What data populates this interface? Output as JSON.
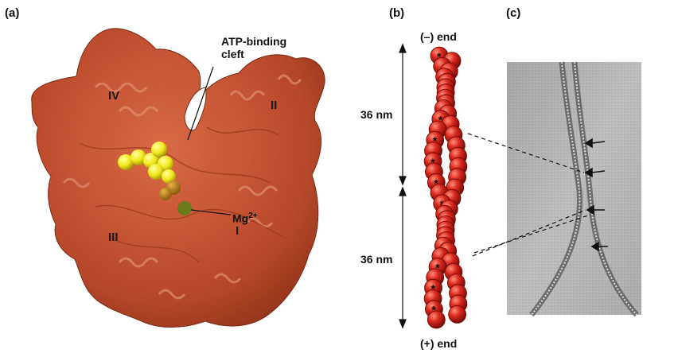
{
  "panels": {
    "a": "(a)",
    "b": "(b)",
    "c": "(c)"
  },
  "panel_a": {
    "cleft_label_line1": "ATP-binding",
    "cleft_label_line2": "cleft",
    "ion_label": "Mg",
    "ion_charge": "2+",
    "subdomains": {
      "I": "I",
      "II": "II",
      "III": "III",
      "IV": "IV"
    },
    "colors": {
      "protein_surface": "#c0502d",
      "atp": "#f2e81c",
      "ion": "#6b7a1a"
    }
  },
  "panel_b": {
    "top_label": "(–) end",
    "bottom_label": "(+) end",
    "upper_repeat": "36 nm",
    "lower_repeat": "36 nm",
    "marker_symbol": "*",
    "colors": {
      "subunit": "#c8231c"
    }
  },
  "panel_c": {
    "arrow_count": 4,
    "micrograph_icon": "electron-micrograph"
  }
}
